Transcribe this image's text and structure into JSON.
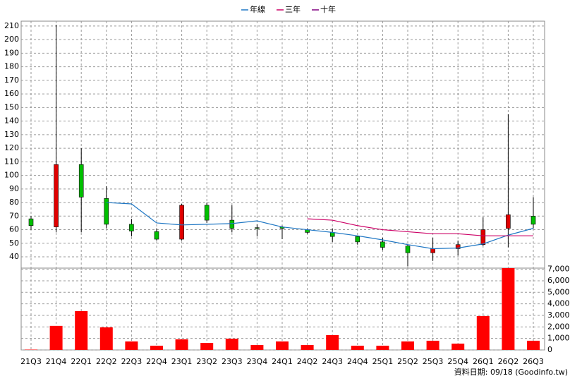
{
  "chart_data": {
    "type": "candlestick",
    "categories": [
      "21Q3",
      "21Q4",
      "22Q1",
      "22Q2",
      "22Q3",
      "22Q4",
      "23Q1",
      "23Q2",
      "23Q3",
      "23Q4",
      "24Q1",
      "24Q2",
      "24Q3",
      "24Q4",
      "25Q1",
      "25Q2",
      "25Q3",
      "25Q4",
      "26Q1",
      "26Q2",
      "26Q3"
    ],
    "open": [
      63,
      108,
      84,
      64,
      59,
      53,
      78,
      67,
      61,
      61,
      61,
      58,
      55,
      51,
      47,
      43,
      46,
      49,
      60,
      71,
      64
    ],
    "close": [
      68,
      62,
      108,
      83,
      64,
      58.6,
      53,
      78,
      67,
      61.5,
      62,
      60,
      58,
      55,
      51,
      48,
      43,
      46,
      49,
      61,
      70
    ],
    "high": [
      70,
      211,
      120,
      92,
      68,
      61,
      79,
      80,
      78,
      64,
      63,
      61,
      61,
      55.5,
      54,
      49,
      54,
      52,
      69,
      145,
      84
    ],
    "low": [
      60,
      58,
      58,
      61,
      55,
      52,
      52,
      65,
      58,
      55,
      53,
      57,
      51,
      49,
      45,
      33,
      37,
      41,
      48,
      47,
      61
    ],
    "up_color": "#00c000",
    "down_color": "#e00000",
    "series": [
      {
        "name": "年線",
        "color": "#1f77c4",
        "values": [
          null,
          null,
          null,
          80,
          79,
          65,
          63.5,
          64,
          64.5,
          66.5,
          62,
          60,
          58,
          55.5,
          52.5,
          49,
          46,
          46.5,
          49.5,
          56,
          61
        ]
      },
      {
        "name": "三年",
        "color": "#cc0066",
        "values": [
          null,
          null,
          null,
          null,
          null,
          null,
          null,
          null,
          null,
          null,
          null,
          68,
          67,
          63,
          60,
          58.5,
          57,
          57,
          55.5,
          55.5,
          55.5
        ]
      },
      {
        "name": "十年",
        "color": "#800080",
        "values": [
          null,
          null,
          null,
          null,
          null,
          null,
          null,
          null,
          null,
          null,
          null,
          null,
          null,
          null,
          null,
          null,
          null,
          null,
          null,
          null,
          null
        ]
      }
    ],
    "ylim": [
      31.7,
      213.6
    ],
    "yticks": [
      40,
      50,
      60,
      70,
      80,
      90,
      100,
      110,
      120,
      130,
      140,
      150,
      160,
      170,
      180,
      190,
      200,
      210
    ],
    "volume": {
      "color": "#ff0000",
      "values": [
        30,
        2090,
        3370,
        1960,
        740,
        370,
        920,
        610,
        980,
        430,
        740,
        430,
        1290,
        370,
        370,
        740,
        800,
        550,
        2940,
        7100,
        800
      ],
      "ylim": [
        0,
        7100
      ],
      "yticks": [
        0,
        {
          "value": 1000,
          "label": "1,000"
        },
        {
          "value": 2000,
          "label": "2,000"
        },
        {
          "value": 3000,
          "label": "3,000"
        },
        {
          "value": 4000,
          "label": "4,000"
        },
        {
          "value": 5000,
          "label": "5,000"
        },
        {
          "value": 6000,
          "label": "6,000"
        },
        {
          "value": 7000,
          "label": "7,000"
        }
      ]
    },
    "grid": true,
    "source": "資料日期: 09/18 (Goodinfo.tw)"
  }
}
